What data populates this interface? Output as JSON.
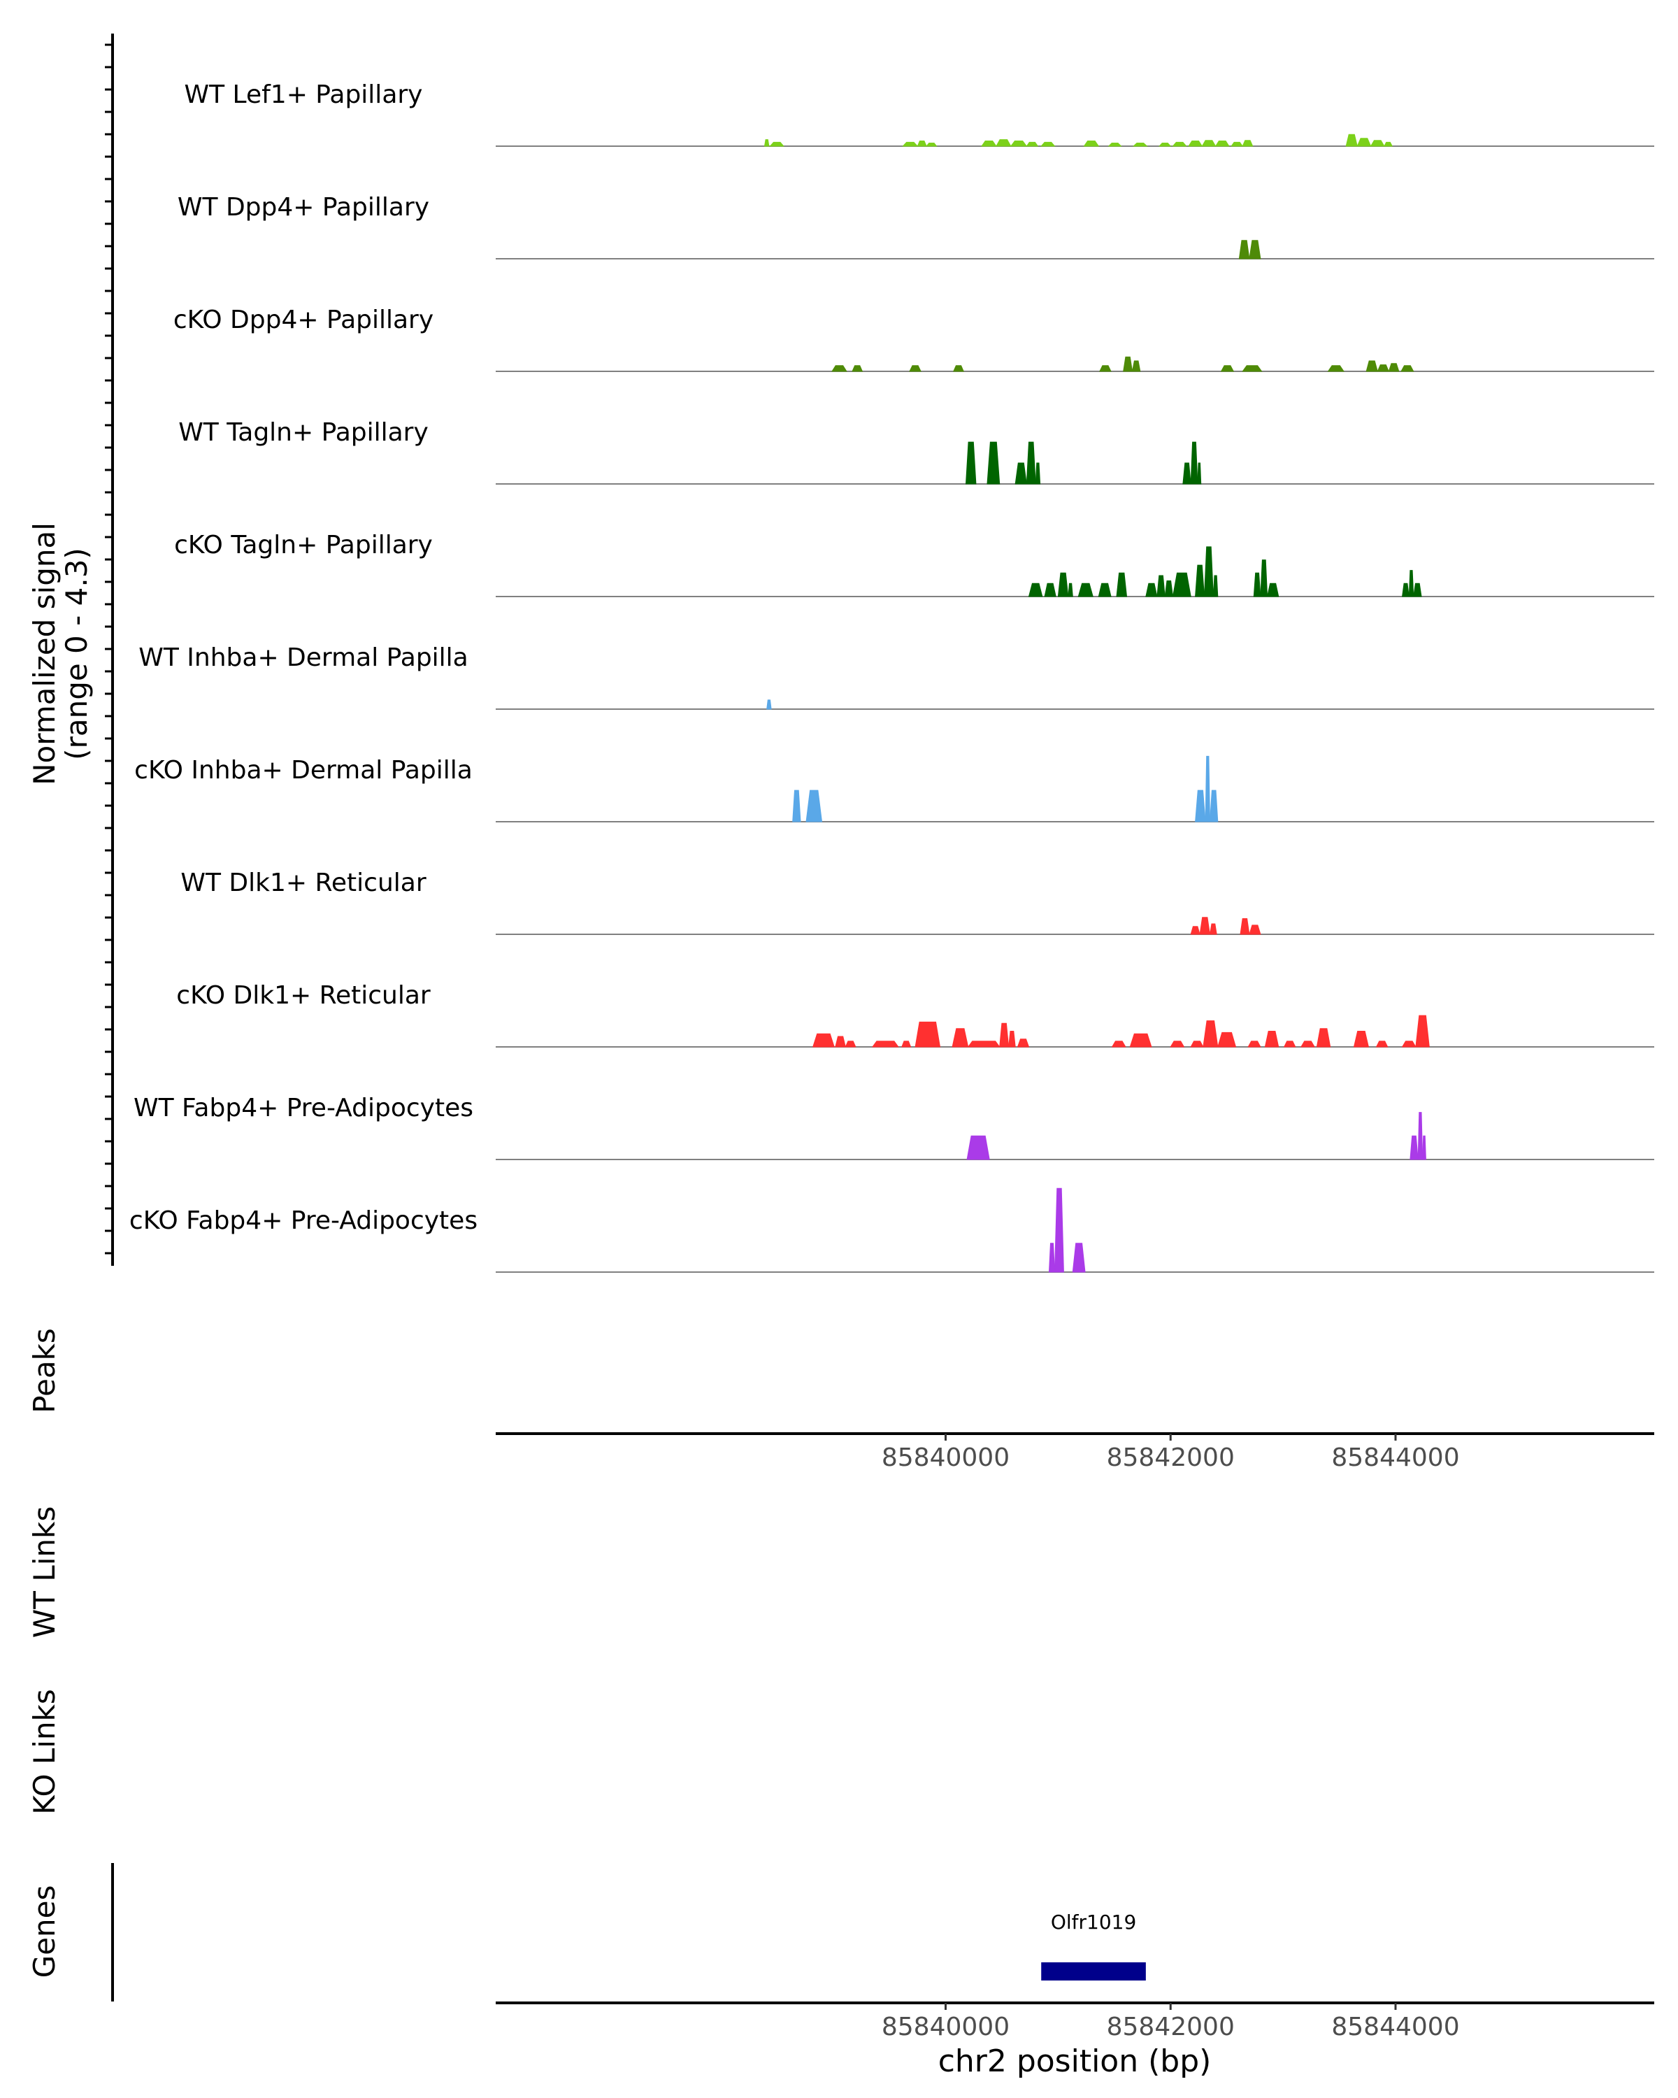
{
  "chart_data": {
    "type": "area",
    "title": "",
    "y_axis_label_line1": "Normalized signal",
    "y_axis_label_line2": "(range 0 - 4.3)",
    "ylim": [
      0,
      4.3
    ],
    "x_range_bp": [
      85836000,
      85846300
    ],
    "xlabel": "chr2 position (bp)",
    "x_ticks": [
      85840000,
      85842000,
      85844000
    ],
    "x_tick_labels": [
      "85840000",
      "85842000",
      "85844000"
    ],
    "panel_labels": {
      "peaks": "Peaks",
      "wt_links": "WT Links",
      "ko_links": "KO Links",
      "genes": "Genes"
    },
    "genes": [
      {
        "name": "Olfr1019",
        "start": 85840850,
        "end": 85841780,
        "color": "#00008b"
      }
    ],
    "tracks": [
      {
        "name": "WT Lef1+ Papillary",
        "color": "#7cd11a",
        "peaks": [
          [
            85838390,
            85838430,
            0.25
          ],
          [
            85838440,
            85838560,
            0.15
          ],
          [
            85839620,
            85839750,
            0.15
          ],
          [
            85839750,
            85839830,
            0.2
          ],
          [
            85839830,
            85839920,
            0.12
          ],
          [
            85840320,
            85840450,
            0.2
          ],
          [
            85840450,
            85840580,
            0.25
          ],
          [
            85840580,
            85840720,
            0.2
          ],
          [
            85840720,
            85840820,
            0.15
          ],
          [
            85840850,
            85840970,
            0.15
          ],
          [
            85841230,
            85841360,
            0.2
          ],
          [
            85841450,
            85841560,
            0.12
          ],
          [
            85841670,
            85841790,
            0.12
          ],
          [
            85841900,
            85842000,
            0.12
          ],
          [
            85842020,
            85842140,
            0.15
          ],
          [
            85842160,
            85842280,
            0.2
          ],
          [
            85842280,
            85842400,
            0.22
          ],
          [
            85842400,
            85842520,
            0.2
          ],
          [
            85842540,
            85842640,
            0.15
          ],
          [
            85842640,
            85842730,
            0.22
          ],
          [
            85843560,
            85843660,
            0.45
          ],
          [
            85843660,
            85843780,
            0.3
          ],
          [
            85843780,
            85843900,
            0.22
          ],
          [
            85843900,
            85843970,
            0.15
          ]
        ]
      },
      {
        "name": "WT Dpp4+ Papillary",
        "color": "#4e8a07",
        "peaks": [
          [
            85842610,
            85842700,
            0.7
          ],
          [
            85842700,
            85842800,
            0.7
          ]
        ]
      },
      {
        "name": "cKO Dpp4+ Papillary",
        "color": "#4e8a07",
        "peaks": [
          [
            85838990,
            85839120,
            0.22
          ],
          [
            85839170,
            85839260,
            0.22
          ],
          [
            85839680,
            85839780,
            0.22
          ],
          [
            85840070,
            85840160,
            0.22
          ],
          [
            85841370,
            85841470,
            0.22
          ],
          [
            85841580,
            85841660,
            0.55
          ],
          [
            85841660,
            85841730,
            0.4
          ],
          [
            85842450,
            85842560,
            0.22
          ],
          [
            85842640,
            85842810,
            0.22
          ],
          [
            85843400,
            85843540,
            0.22
          ],
          [
            85843740,
            85843840,
            0.4
          ],
          [
            85843840,
            85843940,
            0.25
          ],
          [
            85843940,
            85844030,
            0.3
          ],
          [
            85844050,
            85844160,
            0.22
          ]
        ]
      },
      {
        "name": "WT Tagln+ Papillary",
        "color": "#006400",
        "peaks": [
          [
            85840180,
            85840270,
            1.6
          ],
          [
            85840370,
            85840480,
            1.6
          ],
          [
            85840620,
            85840720,
            0.8
          ],
          [
            85840720,
            85840800,
            1.6
          ],
          [
            85840800,
            85840840,
            0.8
          ],
          [
            85842110,
            85842180,
            0.8
          ],
          [
            85842180,
            85842240,
            1.6
          ],
          [
            85842240,
            85842270,
            0.8
          ]
        ]
      },
      {
        "name": "cKO Tagln+ Papillary",
        "color": "#006400",
        "peaks": [
          [
            85840740,
            85840860,
            0.5
          ],
          [
            85840880,
            85840980,
            0.5
          ],
          [
            85841000,
            85841090,
            0.9
          ],
          [
            85841090,
            85841130,
            0.5
          ],
          [
            85841180,
            85841310,
            0.5
          ],
          [
            85841360,
            85841470,
            0.5
          ],
          [
            85841520,
            85841610,
            0.9
          ],
          [
            85841780,
            85841880,
            0.5
          ],
          [
            85841880,
            85841950,
            0.8
          ],
          [
            85841950,
            85842020,
            0.6
          ],
          [
            85842020,
            85842180,
            0.9
          ],
          [
            85842220,
            85842300,
            1.2
          ],
          [
            85842300,
            85842380,
            1.9
          ],
          [
            85842380,
            85842420,
            0.8
          ],
          [
            85842740,
            85842800,
            0.9
          ],
          [
            85842800,
            85842860,
            1.4
          ],
          [
            85842860,
            85842960,
            0.5
          ],
          [
            85844060,
            85844120,
            0.5
          ],
          [
            85844120,
            85844160,
            1.0
          ],
          [
            85844160,
            85844230,
            0.5
          ]
        ]
      },
      {
        "name": "WT Inhba+ Dermal Papilla",
        "color": "#5aa8e8",
        "peaks": [
          [
            85838410,
            85838450,
            0.35
          ]
        ]
      },
      {
        "name": "cKO Inhba+ Dermal Papilla",
        "color": "#5aa8e8",
        "peaks": [
          [
            85838640,
            85838710,
            1.2
          ],
          [
            85838760,
            85838900,
            1.2
          ],
          [
            85842220,
            85842310,
            1.2
          ],
          [
            85842310,
            85842350,
            2.5
          ],
          [
            85842350,
            85842420,
            1.2
          ]
        ]
      },
      {
        "name": "WT Dlk1+ Reticular",
        "color": "#ff3030",
        "peaks": [
          [
            85842180,
            85842260,
            0.3
          ],
          [
            85842260,
            85842350,
            0.65
          ],
          [
            85842350,
            85842410,
            0.4
          ],
          [
            85842620,
            85842700,
            0.6
          ],
          [
            85842700,
            85842800,
            0.35
          ]
        ]
      },
      {
        "name": "cKO Dlk1+ Reticular",
        "color": "#ff3030",
        "peaks": [
          [
            85838820,
            85839010,
            0.5
          ],
          [
            85839020,
            85839110,
            0.4
          ],
          [
            85839110,
            85839200,
            0.22
          ],
          [
            85839350,
            85839580,
            0.22
          ],
          [
            85839610,
            85839690,
            0.22
          ],
          [
            85839730,
            85839950,
            0.95
          ],
          [
            85840060,
            85840200,
            0.7
          ],
          [
            85840200,
            85840480,
            0.22
          ],
          [
            85840480,
            85840560,
            0.9
          ],
          [
            85840560,
            85840620,
            0.6
          ],
          [
            85840640,
            85840740,
            0.3
          ],
          [
            85841480,
            85841600,
            0.22
          ],
          [
            85841640,
            85841830,
            0.5
          ],
          [
            85842000,
            85842120,
            0.22
          ],
          [
            85842180,
            85842290,
            0.22
          ],
          [
            85842290,
            85842420,
            1.0
          ],
          [
            85842420,
            85842580,
            0.55
          ],
          [
            85842690,
            85842800,
            0.22
          ],
          [
            85842840,
            85842960,
            0.6
          ],
          [
            85843010,
            85843110,
            0.22
          ],
          [
            85843160,
            85843280,
            0.22
          ],
          [
            85843300,
            85843420,
            0.7
          ],
          [
            85843630,
            85843760,
            0.6
          ],
          [
            85843830,
            85843930,
            0.22
          ],
          [
            85844060,
            85844180,
            0.22
          ],
          [
            85844180,
            85844300,
            1.2
          ]
        ]
      },
      {
        "name": "WT Fabp4+ Pre-Adipocytes",
        "color": "#aa3be8",
        "peaks": [
          [
            85840190,
            85840390,
            0.9
          ],
          [
            85844130,
            85844200,
            0.9
          ],
          [
            85844200,
            85844240,
            1.8
          ],
          [
            85844240,
            85844270,
            0.9
          ]
        ]
      },
      {
        "name": "cKO Fabp4+ Pre-Adipocytes",
        "color": "#aa3be8",
        "peaks": [
          [
            85840920,
            85840970,
            1.1
          ],
          [
            85840970,
            85841050,
            3.2
          ],
          [
            85841130,
            85841240,
            1.1
          ]
        ]
      }
    ]
  }
}
